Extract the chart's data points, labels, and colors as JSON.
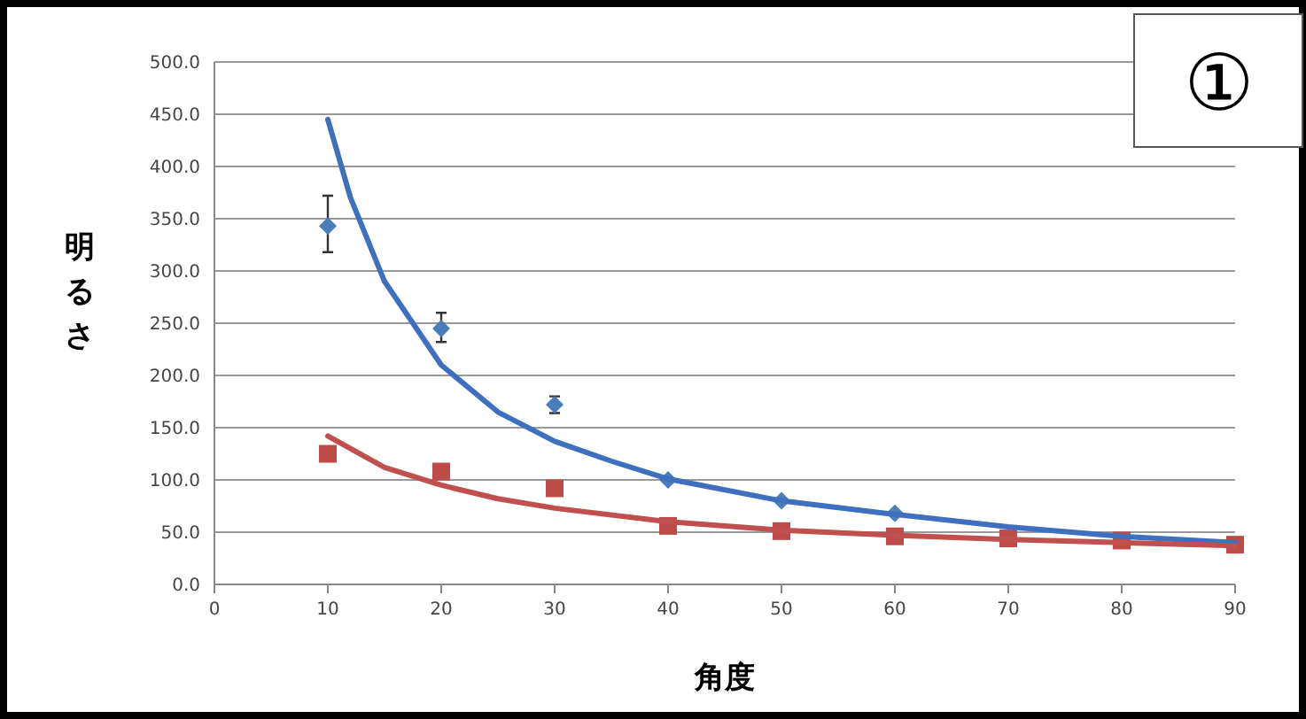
{
  "chart_data": {
    "type": "scatter",
    "xlabel": "角度",
    "ylabel": "明るさ",
    "annotations": [
      "①"
    ],
    "xlim": [
      0,
      90
    ],
    "xticks": [
      0,
      10,
      20,
      30,
      40,
      50,
      60,
      70,
      80,
      90
    ],
    "ylim": [
      0,
      500
    ],
    "yticks": [
      {
        "value": 0,
        "label": "0.0"
      },
      {
        "value": 50,
        "label": "50.0"
      },
      {
        "value": 100,
        "label": "100.0"
      },
      {
        "value": 150,
        "label": "150.0"
      },
      {
        "value": 200,
        "label": "200.0"
      },
      {
        "value": 250,
        "label": "250.0"
      },
      {
        "value": 300,
        "label": "300.0"
      },
      {
        "value": 350,
        "label": "350.0"
      },
      {
        "value": 400,
        "label": "400.0"
      },
      {
        "value": 450,
        "label": "450.0"
      },
      {
        "value": 500,
        "label": "500.0"
      }
    ],
    "grid": "y",
    "series": [
      {
        "marker": "diamond",
        "color": "#4a7ebb",
        "x": [
          10,
          20,
          30,
          40,
          50,
          60
        ],
        "values": [
          343,
          245,
          172,
          100,
          80,
          68
        ],
        "errors": [
          [
            318,
            372
          ],
          [
            232,
            260
          ],
          [
            164,
            180
          ],
          null,
          null,
          null
        ]
      },
      {
        "marker": "square",
        "color": "#be4b48",
        "x": [
          10,
          20,
          30,
          40,
          50,
          60,
          70,
          80,
          90
        ],
        "values": [
          125,
          108,
          92,
          56,
          51,
          46,
          44,
          42,
          38
        ]
      },
      {
        "type": "line",
        "color": "#3f6fbf",
        "x": [
          10,
          12,
          15,
          20,
          25,
          30,
          35,
          40,
          50,
          60,
          70,
          80,
          90
        ],
        "values": [
          445,
          370,
          290,
          210,
          165,
          137,
          118,
          101,
          80,
          67,
          55,
          46,
          40
        ]
      },
      {
        "type": "line",
        "color": "#c0504d",
        "x": [
          10,
          15,
          20,
          25,
          30,
          40,
          50,
          60,
          70,
          80,
          90
        ],
        "values": [
          142,
          112,
          95,
          82,
          73,
          60,
          52,
          47,
          43,
          40,
          37
        ]
      }
    ]
  }
}
